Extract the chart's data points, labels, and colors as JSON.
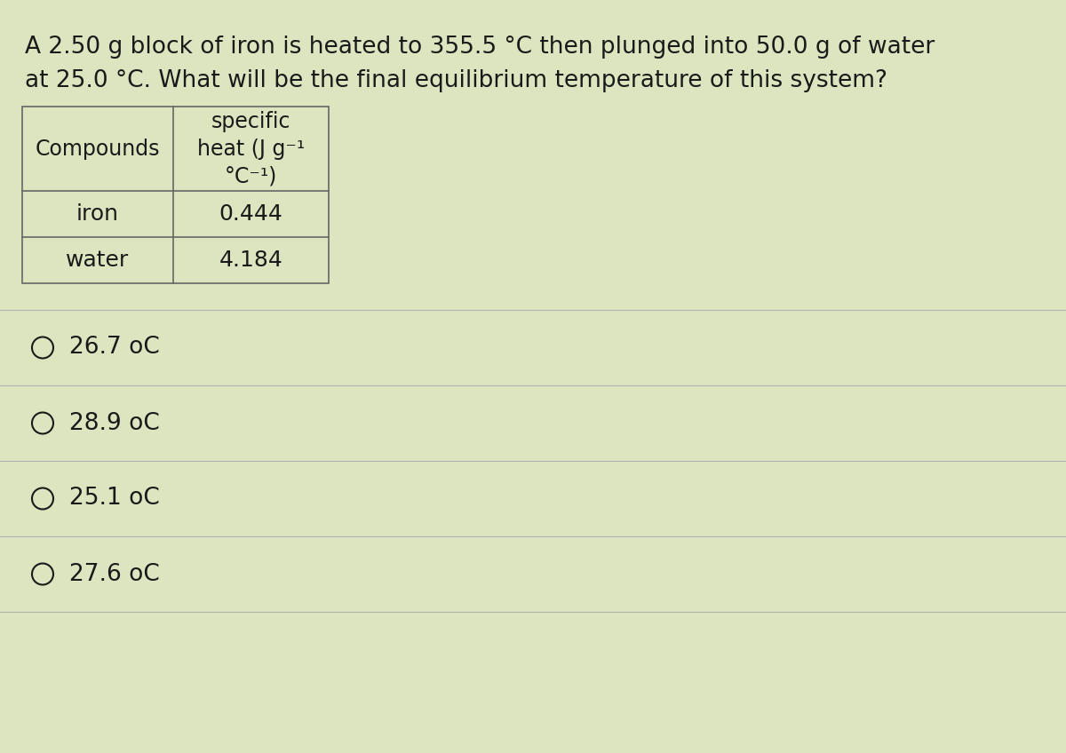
{
  "question_line1": "A 2.50 g block of iron is heated to 355.5 °C then plunged into 50.0 g of water",
  "question_line2": "at 25.0 °C. What will be the final equilibrium temperature of this system?",
  "table_header_col1": "Compounds",
  "table_header_col2_line1": "specific",
  "table_header_col2_line2": "heat (J g⁻¹",
  "table_header_col2_line3": "°C⁻¹)",
  "table_row1_col1": "iron",
  "table_row1_col2": "0.444",
  "table_row2_col1": "water",
  "table_row2_col2": "4.184",
  "choices": [
    "26.7 oC",
    "28.9 oC",
    "25.1 oC",
    "27.6 oC"
  ],
  "bg_color": "#dde5c0",
  "text_color": "#1a1a1a",
  "table_border_color": "#666666",
  "line_color": "#b0b0b0",
  "font_size_question": 19,
  "font_size_table_header": 17,
  "font_size_table_data": 18,
  "font_size_choices": 19
}
